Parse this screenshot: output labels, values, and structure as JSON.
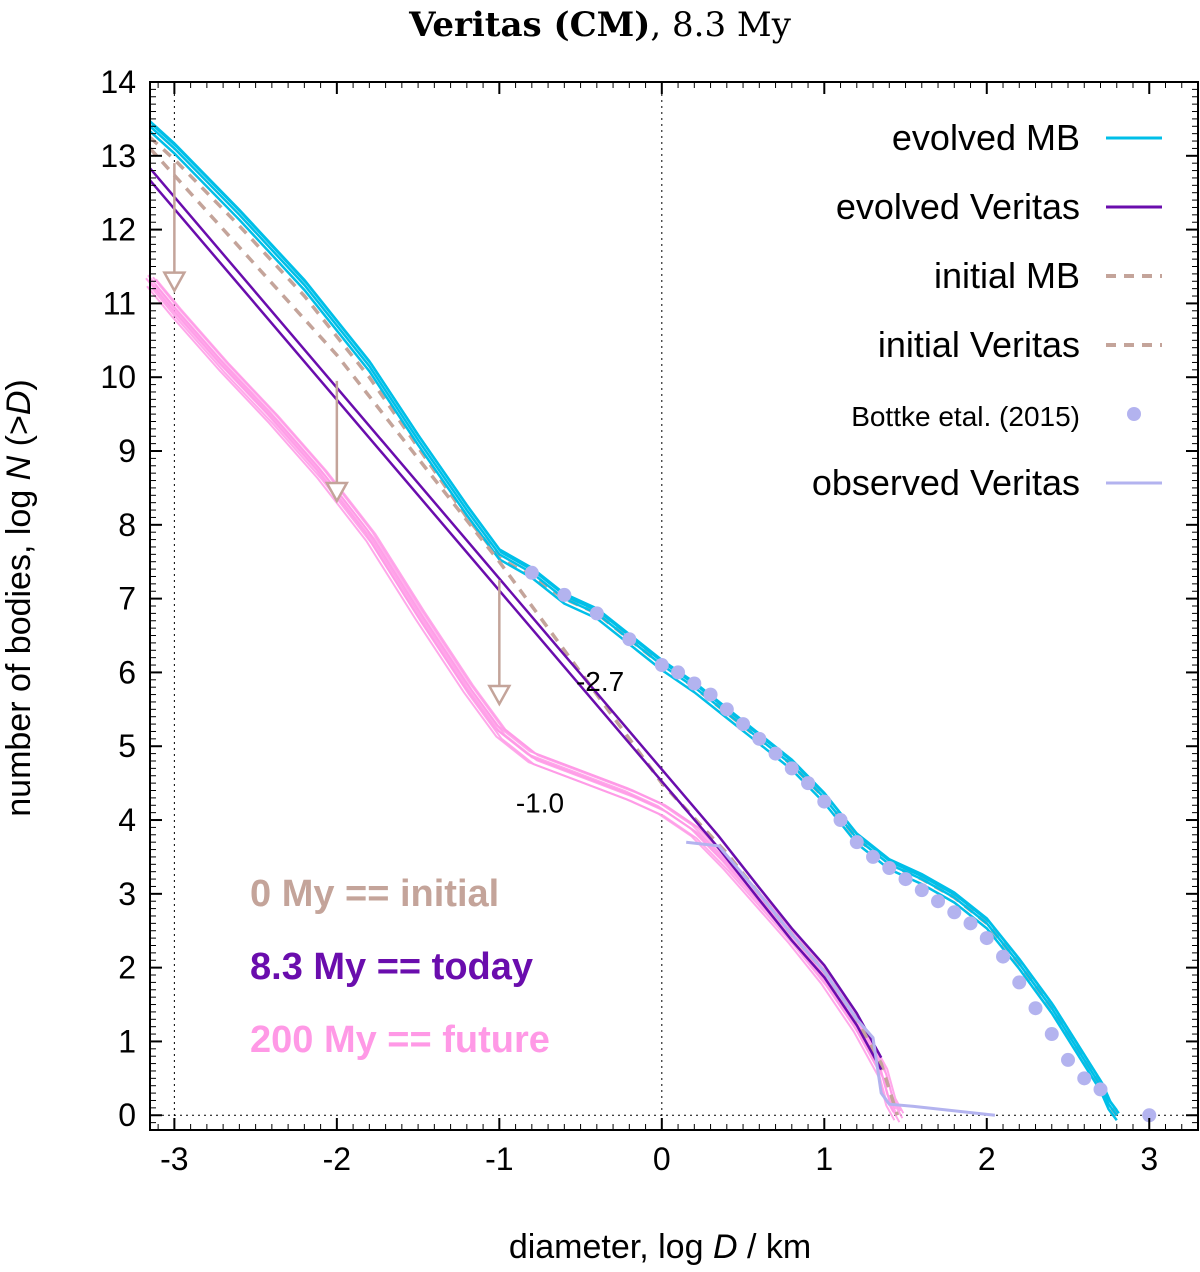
{
  "chart_data": {
    "type": "line",
    "title": {
      "bold": "Veritas (CM)",
      "rest": ", 8.3 My"
    },
    "xlabel": {
      "pre": "diameter, log ",
      "var": "D",
      "post": " / km"
    },
    "ylabel": {
      "pre": "number of bodies, log ",
      "var": "N",
      "post": " (>",
      "var2": "D",
      "end": ")"
    },
    "xlim": [
      -3.15,
      3.3
    ],
    "ylim": [
      -0.2,
      14
    ],
    "xticks": [
      -3,
      -2,
      -1,
      0,
      1,
      2,
      3
    ],
    "yticks": [
      0,
      1,
      2,
      3,
      4,
      5,
      6,
      7,
      8,
      9,
      10,
      11,
      12,
      13,
      14
    ],
    "reference_lines": {
      "vertical": [
        -3,
        0
      ],
      "horizontal": [
        0
      ]
    },
    "series": [
      {
        "name": "evolved MB",
        "color": "#00bfe8",
        "style": "solid",
        "x": [
          -3.15,
          -3.0,
          -2.6,
          -2.2,
          -1.8,
          -1.5,
          -1.2,
          -1.0,
          -0.8,
          -0.6,
          -0.4,
          -0.2,
          0.0,
          0.2,
          0.4,
          0.6,
          0.8,
          1.0,
          1.2,
          1.4,
          1.6,
          1.8,
          2.0,
          2.2,
          2.4,
          2.6,
          2.7,
          2.75,
          2.8
        ],
        "y": [
          13.4,
          13.1,
          12.2,
          11.25,
          10.15,
          9.15,
          8.2,
          7.6,
          7.35,
          7.0,
          6.8,
          6.45,
          6.1,
          5.8,
          5.45,
          5.1,
          4.75,
          4.3,
          3.75,
          3.4,
          3.2,
          2.95,
          2.6,
          2.05,
          1.45,
          0.75,
          0.4,
          0.15,
          0.0
        ]
      },
      {
        "name": "evolved Veritas",
        "color": "#6a0dad",
        "style": "solid",
        "x": [
          -3.15,
          0.35,
          0.6,
          0.8,
          1.0,
          1.2,
          1.35
        ],
        "y": [
          12.75,
          3.7,
          3.0,
          2.45,
          1.95,
          1.3,
          0.7
        ]
      },
      {
        "name": "initial MB",
        "color": "#c4a49a",
        "style": "dashed",
        "x": [
          -3.15,
          -3.0,
          -2.6,
          -2.2,
          -1.8,
          -1.5,
          -1.2,
          -1.0,
          -0.8,
          -0.6,
          -0.4,
          -0.2,
          0.0,
          0.2,
          0.4,
          0.6,
          0.8,
          1.0,
          1.2,
          1.4,
          1.6,
          1.8,
          2.0,
          2.2,
          2.4,
          2.6,
          2.7,
          2.75,
          2.8
        ],
        "y": [
          13.25,
          12.95,
          12.05,
          11.1,
          10.0,
          9.05,
          8.1,
          7.55,
          7.3,
          7.0,
          6.8,
          6.45,
          6.1,
          5.8,
          5.45,
          5.1,
          4.75,
          4.3,
          3.75,
          3.4,
          3.2,
          2.95,
          2.6,
          2.05,
          1.45,
          0.75,
          0.4,
          0.15,
          0.0
        ]
      },
      {
        "name": "initial Veritas",
        "color": "#c4a49a",
        "style": "dashed",
        "x": [
          -3.15,
          -2.0,
          -1.0,
          -0.5,
          0.0,
          0.4,
          0.8,
          1.0,
          1.2,
          1.35,
          1.45
        ],
        "y": [
          13.1,
          10.3,
          7.5,
          6.0,
          4.5,
          3.55,
          2.45,
          1.95,
          1.3,
          0.7,
          0.0
        ]
      },
      {
        "name": "Bottke etal. (2015)",
        "color": "#b3b3ef",
        "style": "points",
        "x": [
          -0.8,
          -0.6,
          -0.4,
          -0.2,
          0.0,
          0.1,
          0.2,
          0.3,
          0.4,
          0.5,
          0.6,
          0.7,
          0.8,
          0.9,
          1.0,
          1.1,
          1.2,
          1.3,
          1.4,
          1.5,
          1.6,
          1.7,
          1.8,
          1.9,
          2.0,
          2.1,
          2.2,
          2.3,
          2.4,
          2.5,
          2.6,
          2.7,
          3.0
        ],
        "y": [
          7.35,
          7.05,
          6.8,
          6.45,
          6.1,
          6.0,
          5.85,
          5.7,
          5.5,
          5.3,
          5.1,
          4.9,
          4.7,
          4.5,
          4.25,
          4.0,
          3.7,
          3.5,
          3.35,
          3.2,
          3.05,
          2.9,
          2.75,
          2.6,
          2.4,
          2.15,
          1.8,
          1.45,
          1.1,
          0.75,
          0.5,
          0.35,
          0.0
        ]
      },
      {
        "name": "observed Veritas",
        "color": "#b3b3ef",
        "style": "solid",
        "x": [
          0.15,
          0.35,
          0.6,
          0.8,
          1.0,
          1.2,
          1.3,
          1.35,
          1.4,
          1.55,
          2.05
        ],
        "y": [
          3.7,
          3.65,
          3.0,
          2.45,
          1.95,
          1.3,
          1.05,
          0.3,
          0.15,
          0.12,
          0.0
        ]
      },
      {
        "name": "200 My",
        "color": "#ff99e6",
        "style": "solid",
        "bundle": true,
        "x": [
          -3.15,
          -3.0,
          -2.7,
          -2.4,
          -2.1,
          -1.8,
          -1.5,
          -1.2,
          -1.0,
          -0.8,
          -0.5,
          -0.2,
          0.0,
          0.2,
          0.4,
          0.6,
          0.8,
          1.0,
          1.2,
          1.35,
          1.4,
          1.45
        ],
        "y": [
          11.3,
          10.9,
          10.15,
          9.45,
          8.7,
          7.85,
          6.8,
          5.8,
          5.2,
          4.85,
          4.6,
          4.35,
          4.15,
          3.85,
          3.4,
          2.9,
          2.4,
          1.85,
          1.2,
          0.6,
          0.2,
          0.0
        ]
      }
    ],
    "legend_position": "top-right",
    "legend": [
      {
        "label": "evolved MB",
        "color": "#00bfe8",
        "style": "solid"
      },
      {
        "label": "evolved Veritas",
        "color": "#6a0dad",
        "style": "solid"
      },
      {
        "label": "initial MB",
        "color": "#c4a49a",
        "style": "dashed"
      },
      {
        "label": "initial Veritas",
        "color": "#c4a49a",
        "style": "dashed"
      },
      {
        "label": "Bottke etal. (2015)",
        "color": "#b3b3ef",
        "style": "points"
      },
      {
        "label": "observed Veritas",
        "color": "#b3b3ef",
        "style": "solid"
      }
    ],
    "slope_labels": [
      {
        "text": "-2.7",
        "x": -0.38,
        "y": 5.75
      },
      {
        "text": "-1.0",
        "x": -0.75,
        "y": 4.1
      }
    ],
    "arrows": [
      {
        "x": -3.0,
        "y_from": 12.9,
        "y_to": 11.2
      },
      {
        "x": -2.0,
        "y_from": 9.95,
        "y_to": 8.35
      },
      {
        "x": -1.0,
        "y_from": 7.25,
        "y_to": 5.6
      }
    ],
    "annotations": [
      {
        "text": "0 My == initial",
        "color": "#c4a49a"
      },
      {
        "text": "8.3 My == today",
        "color": "#6a0dad"
      },
      {
        "text": "200 My == future",
        "color": "#ff99e6"
      }
    ]
  }
}
